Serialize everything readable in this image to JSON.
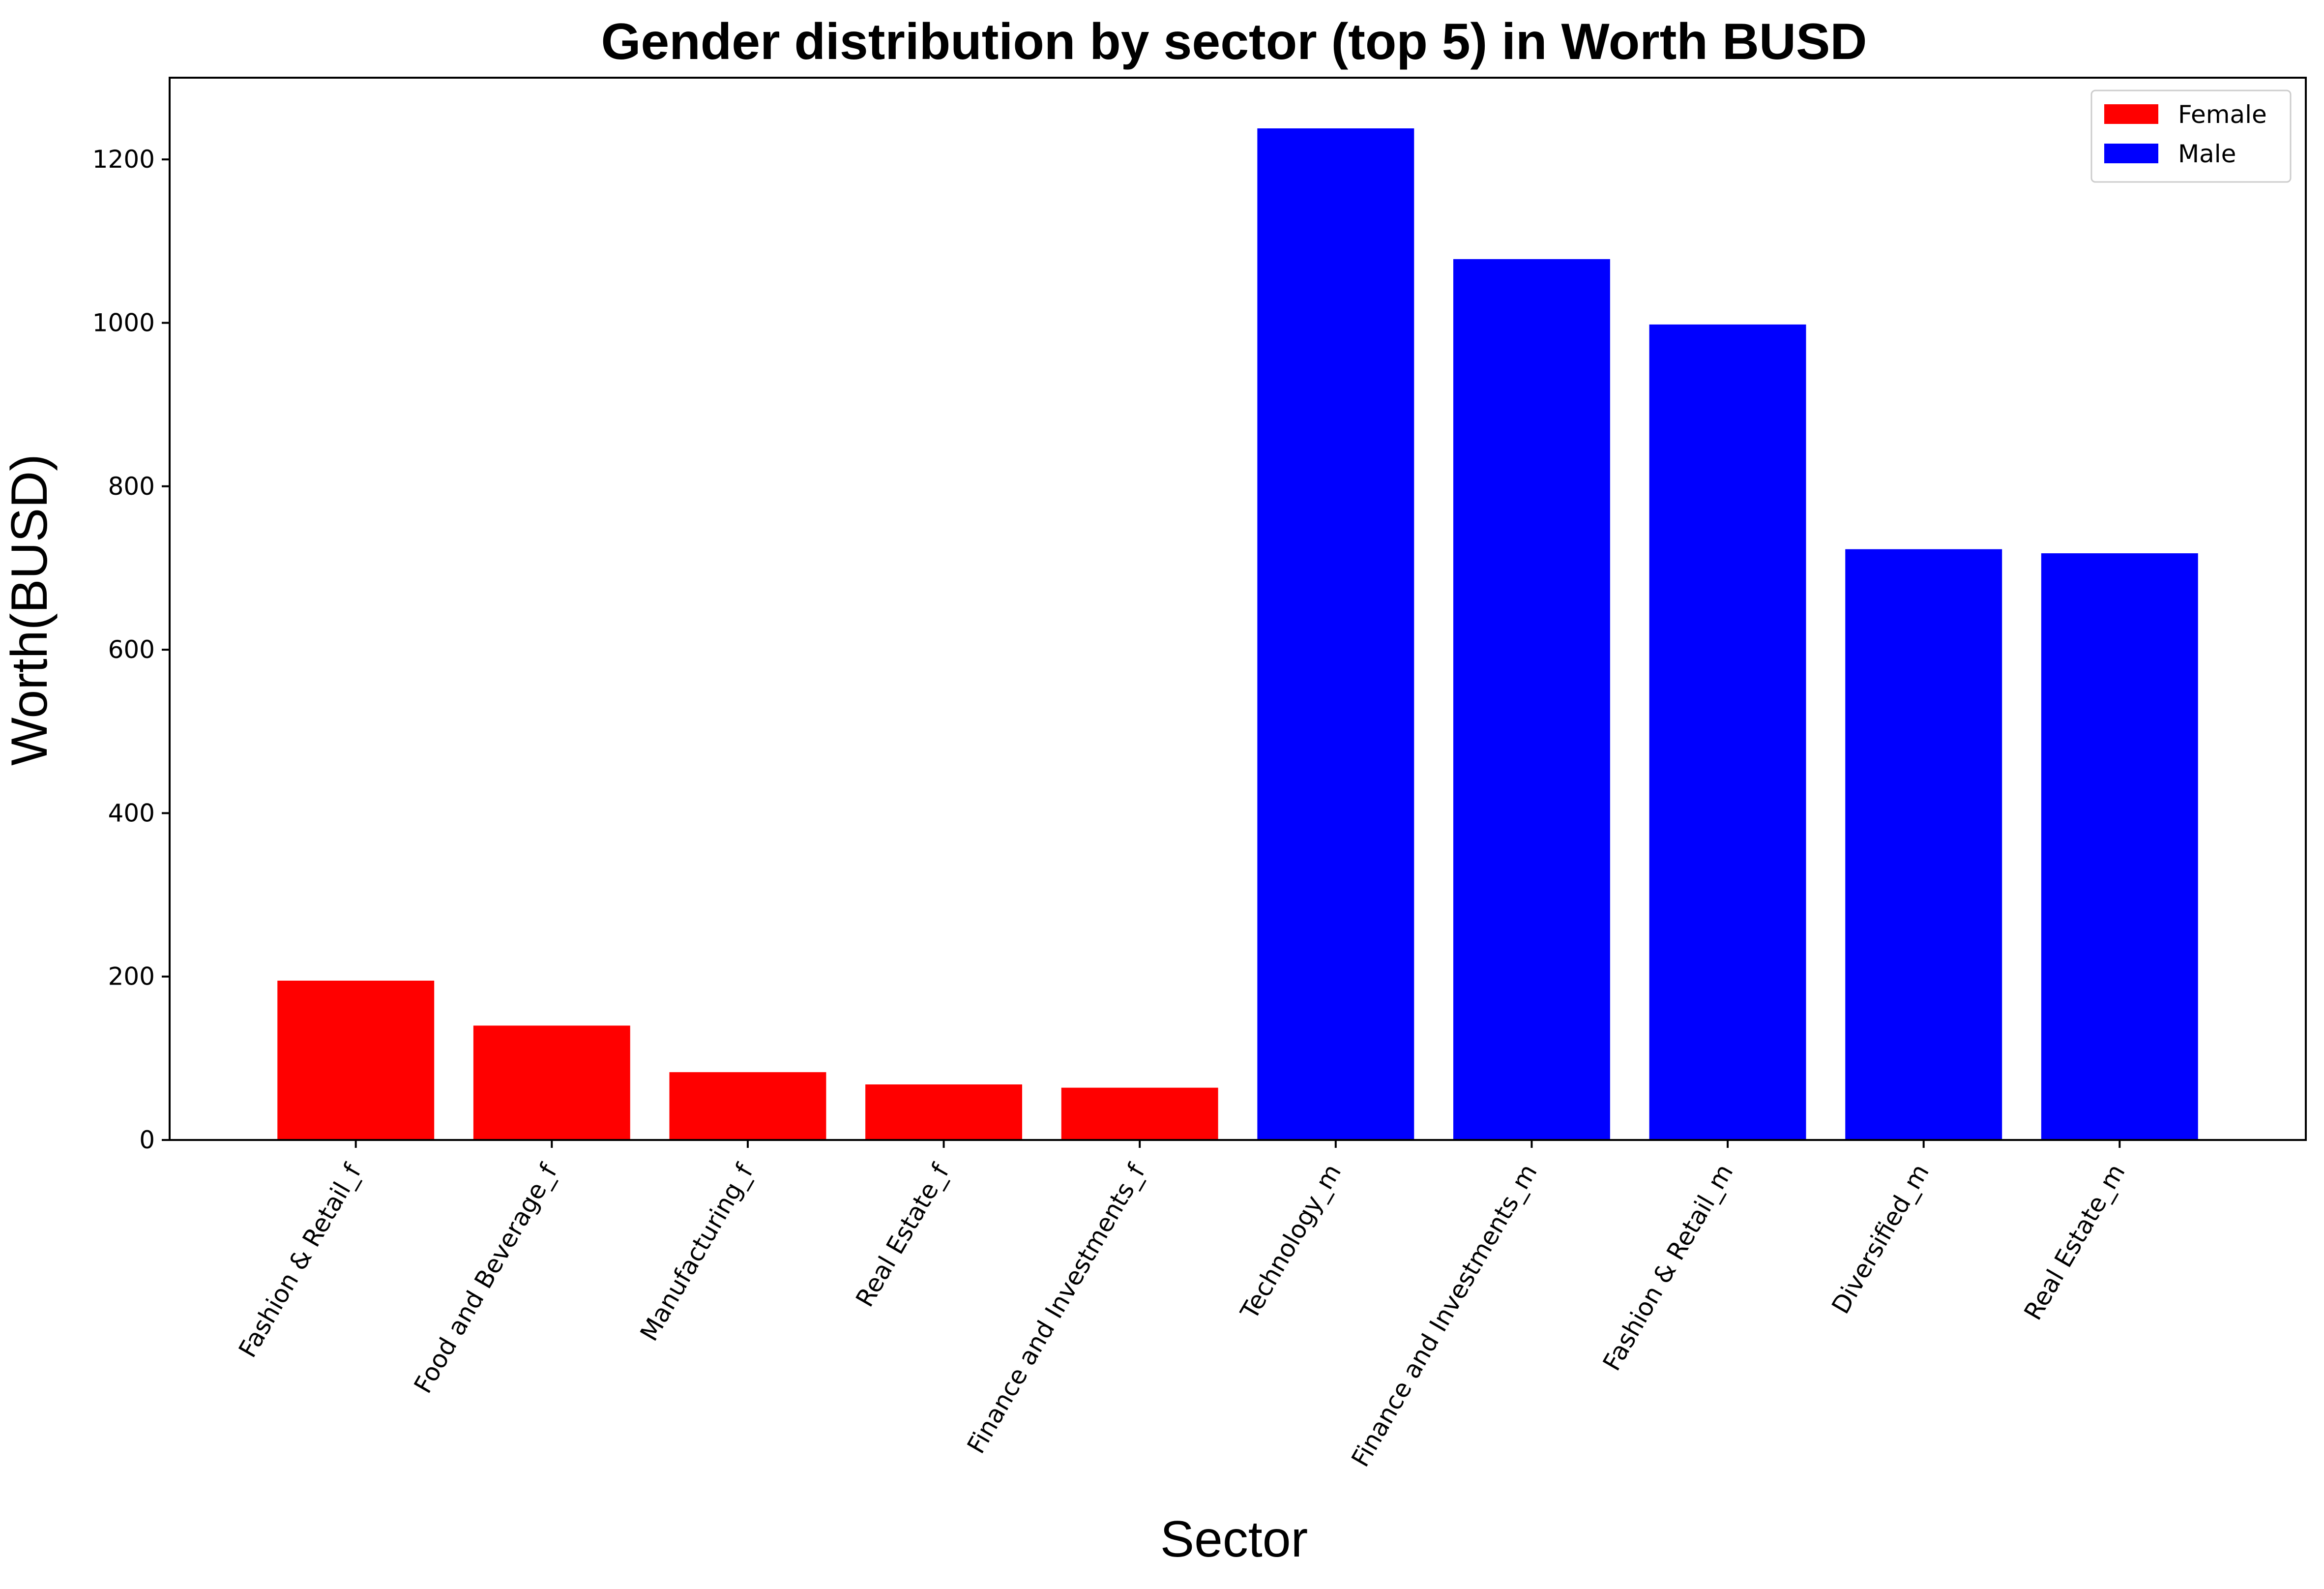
{
  "chart_data": {
    "type": "bar",
    "title": "Gender distribution by sector (top 5) in Worth BUSD",
    "xlabel": "Sector",
    "ylabel": "Worth(BUSD)",
    "ylim": [
      0,
      1300
    ],
    "yticks": [
      0,
      200,
      400,
      600,
      800,
      1000,
      1200
    ],
    "grid": false,
    "legend_position": "top-right",
    "series": [
      {
        "name": "Female",
        "color": "#ff0000",
        "categories": [
          "Fashion & Retail_f",
          "Food and Beverage_f",
          "Manufacturing_f",
          "Real Estate_f",
          "Finance and Investments_f"
        ],
        "values": [
          195,
          140,
          83,
          68,
          64
        ]
      },
      {
        "name": "Male",
        "color": "#0000ff",
        "categories": [
          "Technology_m",
          "Finance and Investments_m",
          "Fashion & Retail_m",
          "Diversified_m",
          "Real Estate_m"
        ],
        "values": [
          1238,
          1078,
          998,
          723,
          718
        ]
      }
    ]
  }
}
